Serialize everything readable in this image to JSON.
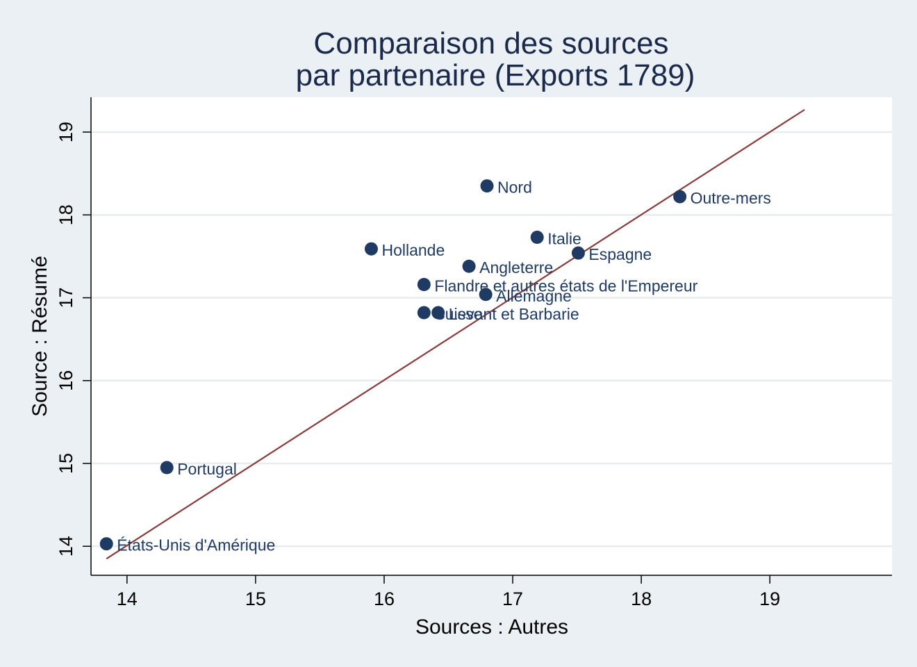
{
  "chart_data": {
    "type": "scatter",
    "title": [
      "Comparaison des sources",
      "par partenaire (Exports 1789)"
    ],
    "xlabel": "Sources : Autres",
    "ylabel": "Source : Résumé",
    "xlim": [
      13.72,
      19.95
    ],
    "ylim": [
      13.65,
      19.42
    ],
    "xticks": [
      14,
      15,
      16,
      17,
      18,
      19
    ],
    "yticks": [
      14,
      15,
      16,
      17,
      18,
      19
    ],
    "grid": "horizontal",
    "point_color": "#1f3b63",
    "fit_color": "#8b3a3a",
    "points": [
      {
        "label": "États-Unis d'Amérique",
        "x": 13.84,
        "y": 14.03
      },
      {
        "label": "Portugal",
        "x": 14.31,
        "y": 14.95
      },
      {
        "label": "Hollande",
        "x": 15.9,
        "y": 17.59
      },
      {
        "label": "Flandre et autres états de l'Empereur",
        "x": 16.31,
        "y": 17.16
      },
      {
        "label": "Suisse",
        "x": 16.31,
        "y": 16.82
      },
      {
        "label": "Levant et Barbarie",
        "x": 16.42,
        "y": 16.82
      },
      {
        "label": "Angleterre",
        "x": 16.66,
        "y": 17.38
      },
      {
        "label": "Allemagne",
        "x": 16.79,
        "y": 17.04
      },
      {
        "label": "Nord",
        "x": 16.8,
        "y": 18.35
      },
      {
        "label": "Italie",
        "x": 17.19,
        "y": 17.73
      },
      {
        "label": "Espagne",
        "x": 17.51,
        "y": 17.54
      },
      {
        "label": "Outre-mers",
        "x": 18.3,
        "y": 18.22
      }
    ],
    "fit_line": {
      "x": [
        13.84,
        19.27
      ],
      "y": [
        13.85,
        19.27
      ]
    }
  }
}
